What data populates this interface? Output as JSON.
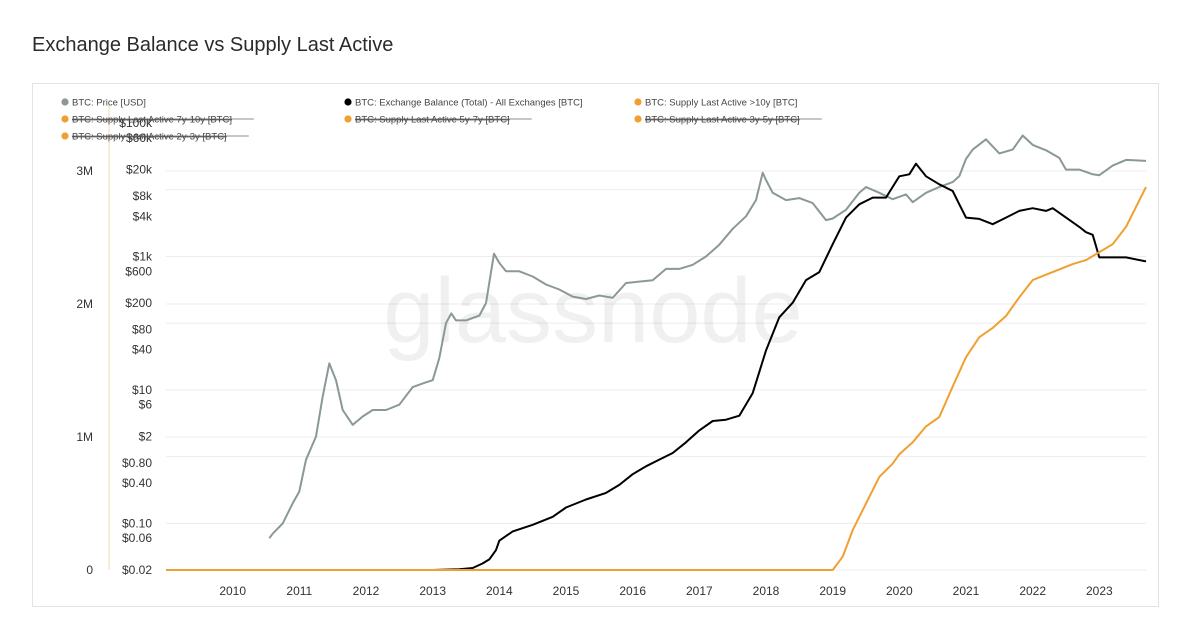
{
  "title": "Exchange Balance vs Supply Last Active",
  "watermark": "glassnode",
  "colors": {
    "price": "#8a9898",
    "exchange": "#000000",
    "supply": "#f0a030",
    "grid": "#ececec",
    "text": "#333333"
  },
  "legend": [
    {
      "label": "BTC: Price [USD]",
      "color": "#8a9898",
      "struck": false
    },
    {
      "label": "BTC: Exchange Balance (Total) - All Exchanges [BTC]",
      "color": "#000000",
      "struck": false
    },
    {
      "label": "BTC: Supply Last Active >10y [BTC]",
      "color": "#f0a030",
      "struck": false
    },
    {
      "label": "BTC: Supply Last Active 7y-10y [BTC]",
      "color": "#f0a030",
      "struck": true
    },
    {
      "label": "BTC: Supply Last Active 5y-7y [BTC]",
      "color": "#f0a030",
      "struck": true
    },
    {
      "label": "BTC: Supply Last Active 3y-5y [BTC]",
      "color": "#f0a030",
      "struck": true
    },
    {
      "label": "BTC: Supply Last Active 2y-3y [BTC]",
      "color": "#f0a030",
      "struck": true
    }
  ],
  "chart_data": {
    "type": "line",
    "title": "Exchange Balance vs Supply Last Active",
    "grid": true,
    "legend_position": "top-left",
    "x_ticks": [
      "2010",
      "2011",
      "2012",
      "2013",
      "2014",
      "2015",
      "2016",
      "2017",
      "2018",
      "2019",
      "2020",
      "2021",
      "2022",
      "2023"
    ],
    "xlim": [
      2009.0,
      2023.7
    ],
    "left_axis": {
      "scale": "linear",
      "ylim": [
        0,
        3000000
      ],
      "ticks": [
        {
          "value": 0,
          "label": "0"
        },
        {
          "value": 1000000,
          "label": "1M"
        },
        {
          "value": 2000000,
          "label": "2M"
        },
        {
          "value": 3000000,
          "label": "3M"
        }
      ]
    },
    "price_axis": {
      "scale": "log",
      "ylim": [
        0.02,
        100000
      ],
      "ticks": [
        {
          "value": 100000,
          "label": "$100k"
        },
        {
          "value": 60000,
          "label": "$60k"
        },
        {
          "value": 20000,
          "label": "$20k"
        },
        {
          "value": 8000,
          "label": "$8k"
        },
        {
          "value": 4000,
          "label": "$4k"
        },
        {
          "value": 1000,
          "label": "$1k"
        },
        {
          "value": 600,
          "label": "$600"
        },
        {
          "value": 200,
          "label": "$200"
        },
        {
          "value": 80,
          "label": "$80"
        },
        {
          "value": 40,
          "label": "$40"
        },
        {
          "value": 10,
          "label": "$10"
        },
        {
          "value": 6,
          "label": "$6"
        },
        {
          "value": 2,
          "label": "$2"
        },
        {
          "value": 0.8,
          "label": "$0.80"
        },
        {
          "value": 0.4,
          "label": "$0.40"
        },
        {
          "value": 0.1,
          "label": "$0.10"
        },
        {
          "value": 0.06,
          "label": "$0.06"
        },
        {
          "value": 0.02,
          "label": "$0.02"
        }
      ]
    },
    "series": [
      {
        "name": "BTC: Price [USD]",
        "axis": "price",
        "x": [
          2010.55,
          2010.6,
          2010.75,
          2010.9,
          2011.0,
          2011.1,
          2011.25,
          2011.35,
          2011.45,
          2011.55,
          2011.65,
          2011.8,
          2011.95,
          2012.1,
          2012.3,
          2012.5,
          2012.7,
          2012.9,
          2013.0,
          2013.1,
          2013.2,
          2013.28,
          2013.35,
          2013.5,
          2013.7,
          2013.8,
          2013.92,
          2014.0,
          2014.1,
          2014.3,
          2014.5,
          2014.7,
          2014.9,
          2015.1,
          2015.3,
          2015.5,
          2015.7,
          2015.9,
          2016.1,
          2016.3,
          2016.5,
          2016.7,
          2016.9,
          2017.1,
          2017.3,
          2017.5,
          2017.7,
          2017.85,
          2017.95,
          2018.0,
          2018.1,
          2018.3,
          2018.5,
          2018.7,
          2018.9,
          2019.0,
          2019.2,
          2019.4,
          2019.5,
          2019.7,
          2019.9,
          2020.1,
          2020.2,
          2020.4,
          2020.6,
          2020.8,
          2020.9,
          2021.0,
          2021.1,
          2021.3,
          2021.5,
          2021.7,
          2021.85,
          2022.0,
          2022.2,
          2022.4,
          2022.5,
          2022.7,
          2022.9,
          2023.0,
          2023.2,
          2023.4,
          2023.7
        ],
        "values": [
          0.06,
          0.07,
          0.1,
          0.2,
          0.3,
          0.9,
          2,
          8,
          25,
          14,
          5,
          3,
          4,
          5,
          5,
          6,
          11,
          13,
          14,
          30,
          100,
          140,
          110,
          110,
          130,
          200,
          1100,
          800,
          600,
          600,
          500,
          380,
          320,
          250,
          230,
          260,
          240,
          400,
          420,
          440,
          650,
          650,
          750,
          1000,
          1500,
          2600,
          4000,
          7000,
          18000,
          14000,
          9000,
          7000,
          7500,
          6300,
          3500,
          3700,
          5000,
          9000,
          11000,
          9000,
          7200,
          8500,
          6500,
          9000,
          11000,
          13000,
          16000,
          29000,
          40000,
          57000,
          35000,
          40000,
          65000,
          47000,
          39000,
          30000,
          20000,
          20000,
          17000,
          16500,
          23000,
          28000,
          27000
        ]
      },
      {
        "name": "BTC: Exchange Balance (Total) - All Exchanges [BTC]",
        "axis": "left",
        "x": [
          2009.0,
          2013.0,
          2013.4,
          2013.6,
          2013.75,
          2013.85,
          2013.95,
          2014.0,
          2014.2,
          2014.5,
          2014.8,
          2015.0,
          2015.3,
          2015.6,
          2015.8,
          2016.0,
          2016.2,
          2016.4,
          2016.6,
          2016.8,
          2017.0,
          2017.2,
          2017.4,
          2017.6,
          2017.8,
          2018.0,
          2018.2,
          2018.4,
          2018.6,
          2018.8,
          2019.0,
          2019.2,
          2019.4,
          2019.6,
          2019.8,
          2020.0,
          2020.15,
          2020.25,
          2020.4,
          2020.6,
          2020.8,
          2020.9,
          2021.0,
          2021.2,
          2021.4,
          2021.6,
          2021.8,
          2022.0,
          2022.2,
          2022.3,
          2022.5,
          2022.7,
          2022.8,
          2022.9,
          2023.0,
          2023.2,
          2023.4,
          2023.7
        ],
        "values": [
          0,
          0,
          5000,
          15000,
          50000,
          80000,
          150000,
          220000,
          290000,
          340000,
          400000,
          470000,
          530000,
          580000,
          640000,
          720000,
          780000,
          830000,
          880000,
          960000,
          1050000,
          1120000,
          1130000,
          1160000,
          1330000,
          1650000,
          1900000,
          2010000,
          2180000,
          2240000,
          2450000,
          2650000,
          2750000,
          2800000,
          2800000,
          2960000,
          2975000,
          3055000,
          2960000,
          2900000,
          2850000,
          2750000,
          2650000,
          2640000,
          2600000,
          2650000,
          2700000,
          2720000,
          2700000,
          2720000,
          2650000,
          2580000,
          2540000,
          2520000,
          2350000,
          2350000,
          2350000,
          2320000
        ]
      },
      {
        "name": "BTC: Supply Last Active >10y [BTC]",
        "axis": "left",
        "x": [
          2009.0,
          2019.0,
          2019.15,
          2019.3,
          2019.5,
          2019.7,
          2019.9,
          2020.0,
          2020.2,
          2020.4,
          2020.6,
          2020.8,
          2021.0,
          2021.2,
          2021.4,
          2021.6,
          2021.8,
          2022.0,
          2022.2,
          2022.4,
          2022.6,
          2022.8,
          2023.0,
          2023.2,
          2023.4,
          2023.7
        ],
        "values": [
          0,
          0,
          100000,
          300000,
          500000,
          700000,
          800000,
          870000,
          960000,
          1080000,
          1150000,
          1380000,
          1600000,
          1750000,
          1820000,
          1910000,
          2050000,
          2180000,
          2220000,
          2260000,
          2300000,
          2330000,
          2390000,
          2450000,
          2580000,
          2880000
        ]
      }
    ]
  }
}
